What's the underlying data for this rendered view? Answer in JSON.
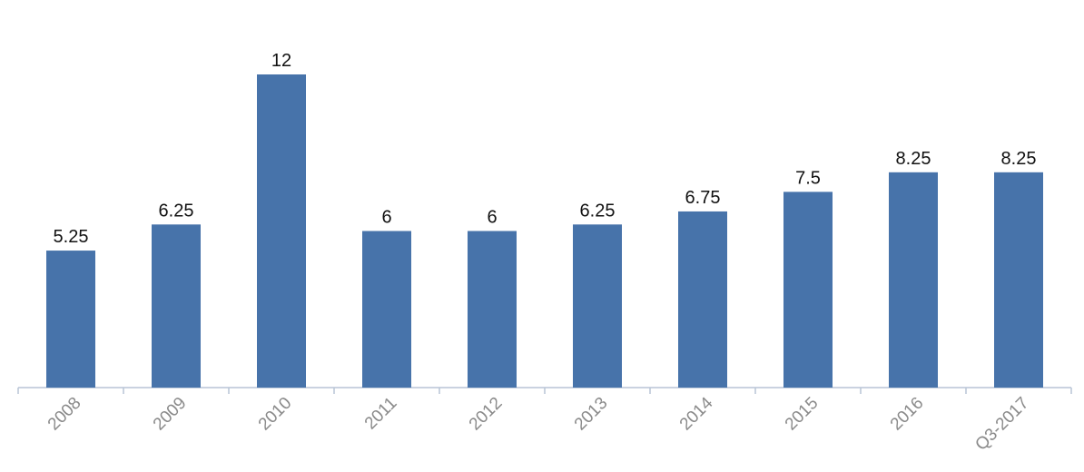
{
  "chart_data": {
    "type": "bar",
    "categories": [
      "2008",
      "2009",
      "2010",
      "2011",
      "2012",
      "2013",
      "2014",
      "2015",
      "2016",
      "Q3-2017"
    ],
    "values": [
      5.25,
      6.25,
      12,
      6,
      6,
      6.25,
      6.75,
      7.5,
      8.25,
      8.25
    ],
    "color": "#4773aa"
  }
}
